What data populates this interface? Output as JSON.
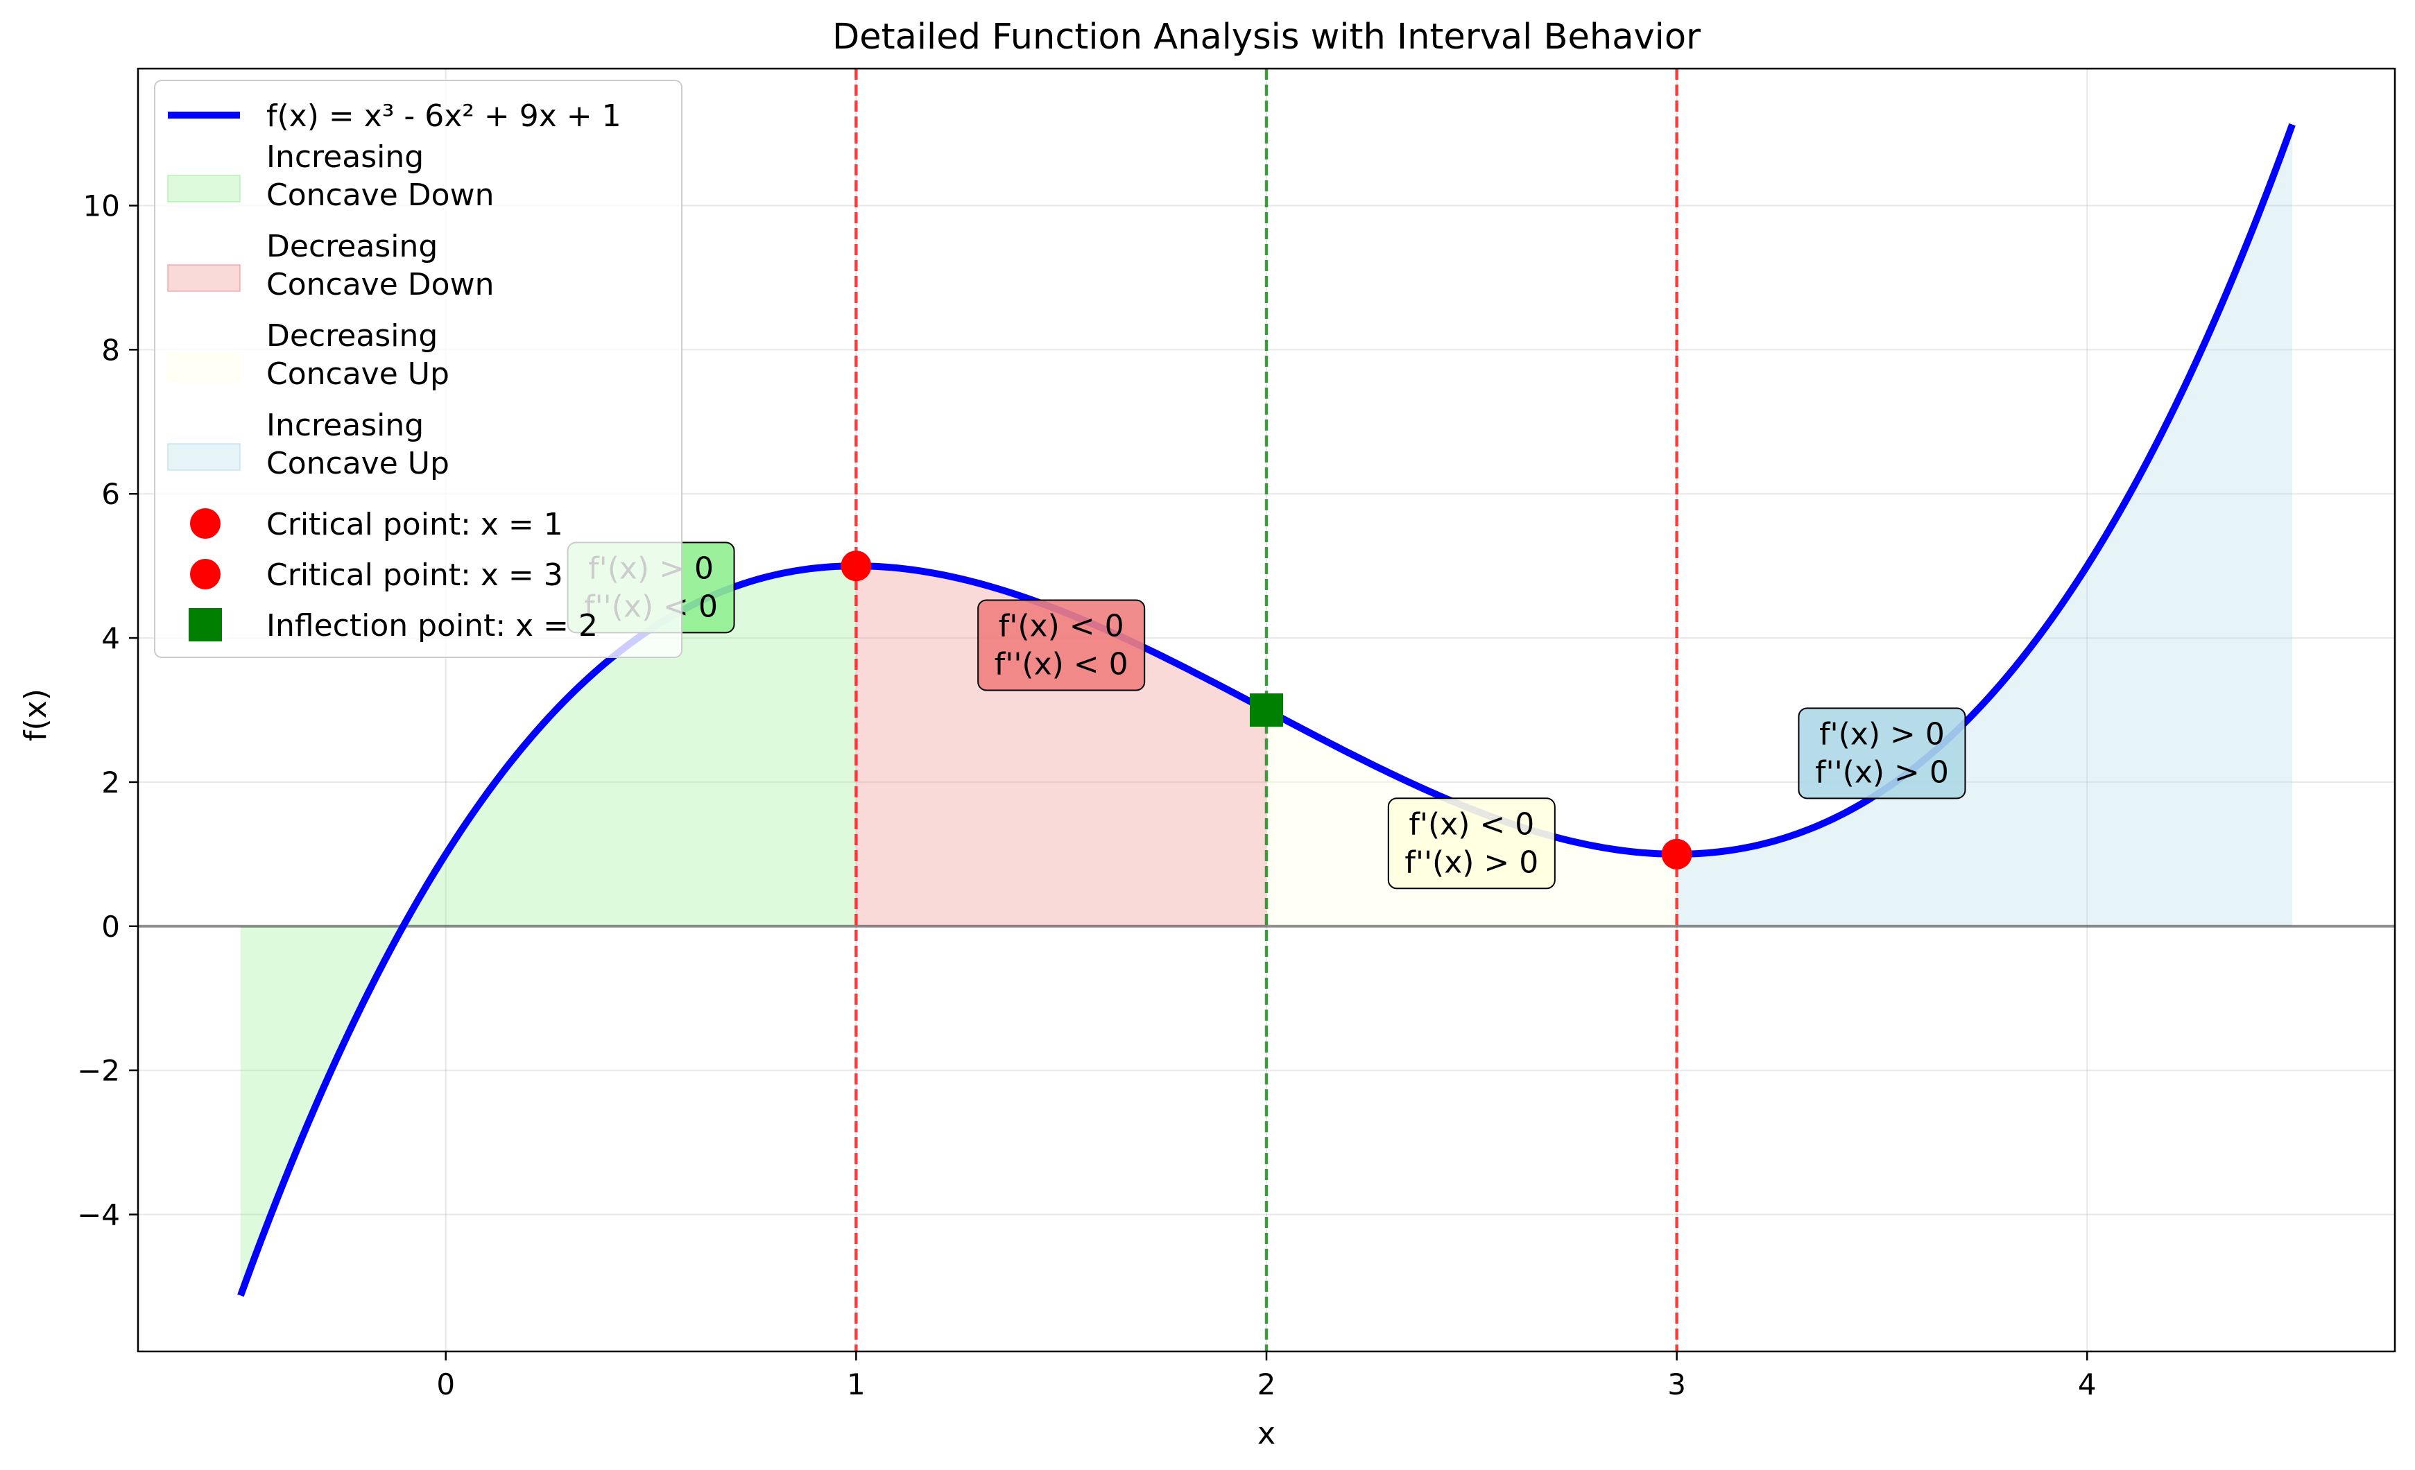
{
  "chart_data": {
    "type": "line",
    "title": "Detailed Function Analysis with Interval Behavior",
    "xlabel": "x",
    "ylabel": "f(x)",
    "xlim": [
      -0.75,
      4.75
    ],
    "ylim": [
      -5.9,
      11.9
    ],
    "x_ticks": [
      0,
      1,
      2,
      3,
      4
    ],
    "y_ticks": [
      -4,
      -2,
      0,
      2,
      4,
      6,
      8,
      10
    ],
    "x_tick_labels": [
      "0",
      "1",
      "2",
      "3",
      "4"
    ],
    "y_tick_labels": [
      "−4",
      "−2",
      "0",
      "2",
      "4",
      "6",
      "8",
      "10"
    ],
    "grid": true,
    "legend_position": "upper-left",
    "series": [
      {
        "name": "f(x) = x³ - 6x² + 9x + 1",
        "color": "#0000ff",
        "x": [
          -0.5,
          -0.25,
          0,
          0.25,
          0.5,
          0.75,
          1,
          1.25,
          1.5,
          1.75,
          2,
          2.25,
          2.5,
          2.75,
          3,
          3.25,
          3.5,
          3.75,
          4,
          4.25,
          4.5
        ],
        "y": [
          -5.125,
          -1.6406,
          1,
          2.8906,
          4.125,
          4.7969,
          5,
          4.8281,
          4.375,
          3.7344,
          3,
          2.2656,
          1.625,
          1.1719,
          1,
          1.2031,
          1.875,
          3.1094,
          5,
          7.6406,
          11.125
        ]
      }
    ],
    "regions": [
      {
        "name": "Increasing\nConcave Down",
        "x_start": -0.5,
        "x_end": 1,
        "color": "#90ee90",
        "opacity": 0.3
      },
      {
        "name": "Decreasing\nConcave Down",
        "x_start": 1,
        "x_end": 2,
        "color": "#f08080",
        "opacity": 0.3
      },
      {
        "name": "Decreasing\nConcave Up",
        "x_start": 2,
        "x_end": 3,
        "color": "#ffffe0",
        "opacity": 0.3
      },
      {
        "name": "Increasing\nConcave Up",
        "x_start": 3,
        "x_end": 4.5,
        "color": "#add8e6",
        "opacity": 0.3
      }
    ],
    "points": [
      {
        "name": "Critical point: x = 1",
        "x": 1,
        "y": 5,
        "color": "#ff0000",
        "marker": "circle"
      },
      {
        "name": "Critical point: x = 3",
        "x": 3,
        "y": 1,
        "color": "#ff0000",
        "marker": "circle"
      },
      {
        "name": "Inflection point: x = 2",
        "x": 2,
        "y": 3,
        "color": "#008000",
        "marker": "square"
      }
    ],
    "vlines": [
      {
        "x": 1,
        "color": "#ff0000"
      },
      {
        "x": 2,
        "color": "#008000"
      },
      {
        "x": 3,
        "color": "#ff0000"
      }
    ],
    "annotations": [
      {
        "lines": [
          "f'(x) > 0",
          "f''(x) < 0"
        ],
        "x": 0.5,
        "y": 4.7,
        "color": "#90ee90"
      },
      {
        "lines": [
          "f'(x) < 0",
          "f''(x) < 0"
        ],
        "x": 1.5,
        "y": 3.9,
        "color": "#f08080"
      },
      {
        "lines": [
          "f'(x) < 0",
          "f''(x) > 0"
        ],
        "x": 2.5,
        "y": 1.15,
        "color": "#ffffe0"
      },
      {
        "lines": [
          "f'(x) > 0",
          "f''(x) > 0"
        ],
        "x": 3.5,
        "y": 2.4,
        "color": "#add8e6"
      }
    ]
  }
}
